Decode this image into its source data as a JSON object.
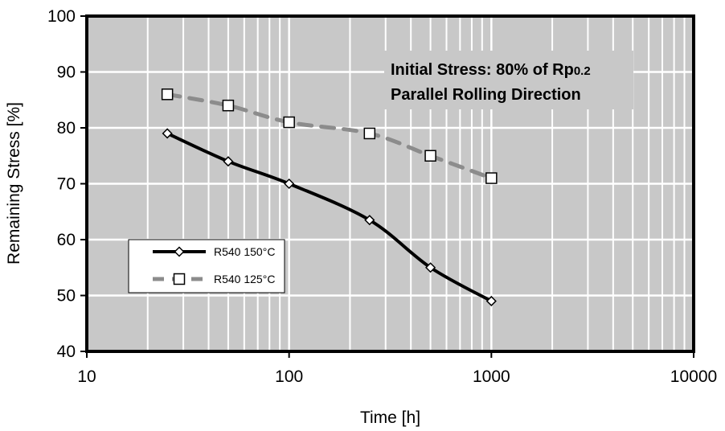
{
  "chart_data": {
    "type": "line",
    "xscale": "log",
    "xlim": [
      10,
      10000
    ],
    "ylim": [
      40,
      100
    ],
    "xticks": [
      10,
      100,
      1000,
      10000
    ],
    "xtick_labels": [
      "10",
      "100",
      "1000",
      "10000"
    ],
    "yticks": [
      40,
      50,
      60,
      70,
      80,
      90,
      100
    ],
    "ytick_labels": [
      "40",
      "50",
      "60",
      "70",
      "80",
      "90",
      "100"
    ],
    "xlabel": "Time [h]",
    "ylabel": "Remaining Stress [%]",
    "grid": true,
    "legend_position": "lower-left",
    "annotations": [
      {
        "text": "Initial Stress: 80% of Rp0.2",
        "main": "Initial Stress: 80% of Rp",
        "sub": "0.2"
      },
      {
        "text": "Parallel Rolling Direction"
      }
    ],
    "series": [
      {
        "name": "R540 150°C",
        "color": "#000000",
        "line": "solid",
        "marker": "diamond",
        "x": [
          25,
          50,
          100,
          250,
          500,
          1000
        ],
        "y": [
          79,
          74,
          70,
          63.5,
          55,
          49
        ]
      },
      {
        "name": "R540 125°C",
        "color": "#8c8c8c",
        "line": "dashed",
        "marker": "square",
        "x": [
          25,
          50,
          100,
          250,
          500,
          1000
        ],
        "y": [
          86,
          84,
          81,
          79,
          75,
          71
        ]
      }
    ]
  }
}
